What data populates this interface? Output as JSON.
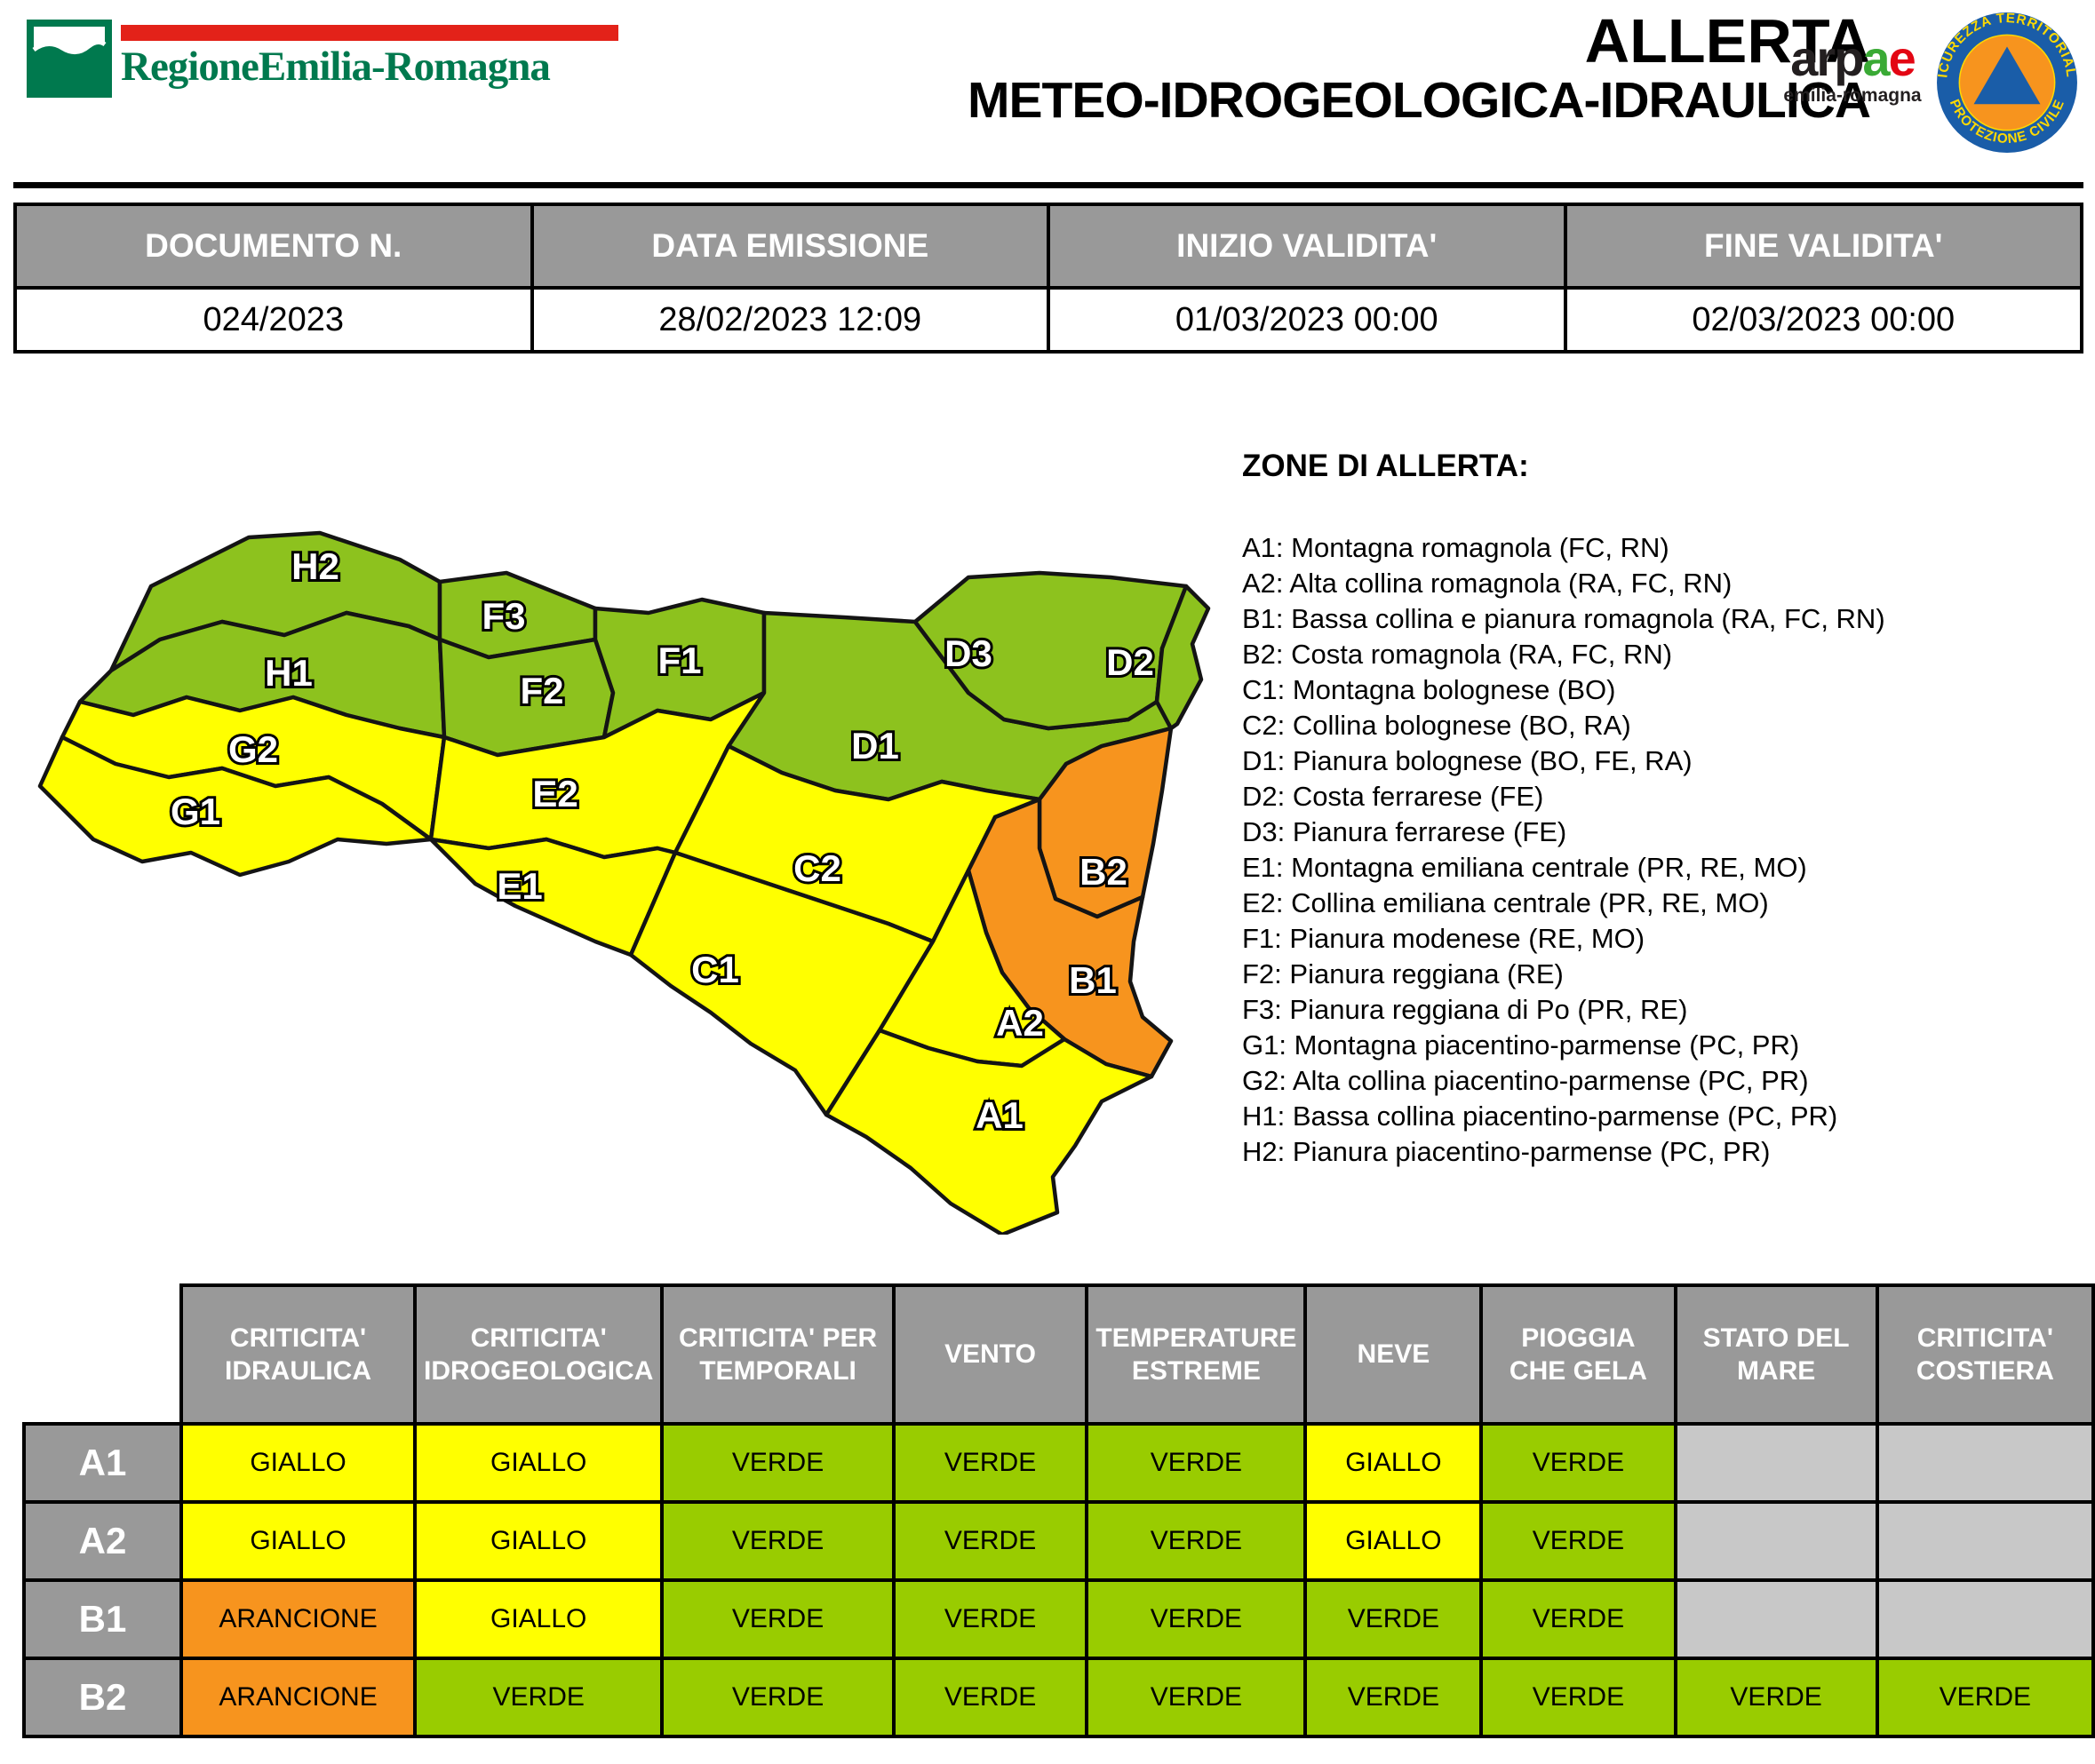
{
  "header": {
    "region_name": "RegioneEmilia-Romagna",
    "title_line1": "ALLERTA",
    "title_line2": "METEO-IDROGEOLOGICA-IDRAULICA",
    "arpae": {
      "wordmark_black": "arp",
      "wordmark_green": "a",
      "wordmark_red": "e",
      "subtitle": "emilia-romagna"
    },
    "badge": {
      "top_text": "SICUREZZA TERRITORIALE",
      "bottom_text": "PROTEZIONE CIVILE"
    },
    "brand_colors": {
      "rer_green": "#00794E",
      "rer_red": "#E32219",
      "arpae_green": "#3AAA35",
      "arpae_red": "#E30613",
      "badge_blue": "#1A5DA8",
      "badge_orange": "#F7941E",
      "badge_yellow": "#FFD900"
    }
  },
  "document_table": {
    "columns": [
      {
        "label": "DOCUMENTO N.",
        "value": "024/2023"
      },
      {
        "label": "DATA EMISSIONE",
        "value": "28/02/2023 12:09"
      },
      {
        "label": "INIZIO VALIDITA'",
        "value": "01/03/2023 00:00"
      },
      {
        "label": "FINE VALIDITA'",
        "value": "02/03/2023 00:00"
      }
    ]
  },
  "zones_legend": {
    "title": "ZONE DI ALLERTA:",
    "items": [
      "A1: Montagna romagnola (FC, RN)",
      "A2: Alta collina romagnola (RA, FC, RN)",
      "B1: Bassa collina e pianura romagnola (RA, FC, RN)",
      "B2: Costa romagnola (RA, FC, RN)",
      "C1: Montagna bolognese (BO)",
      "C2: Collina bolognese (BO, RA)",
      "D1: Pianura bolognese (BO, FE, RA)",
      "D2: Costa ferrarese (FE)",
      "D3: Pianura ferrarese (FE)",
      "E1: Montagna emiliana centrale (PR, RE, MO)",
      "E2: Collina emiliana centrale (PR, RE, MO)",
      "F1: Pianura modenese (RE, MO)",
      "F2: Pianura reggiana (RE)",
      "F3: Pianura reggiana di Po (PR, RE)",
      "G1: Montagna piacentino-parmense (PC, PR)",
      "G2: Alta collina piacentino-parmense (PC, PR)",
      "H1: Bassa collina piacentino-parmense (PC, PR)",
      "H2: Pianura piacentino-parmense (PC, PR)"
    ]
  },
  "map": {
    "colors": {
      "verde": "#99CC00",
      "map_verde": "#8DC21E",
      "giallo": "#FFFF00",
      "arancione": "#F7941E",
      "none": "#C8C8C8"
    },
    "zones": [
      {
        "id": "H2",
        "level": "verde"
      },
      {
        "id": "H1",
        "level": "verde"
      },
      {
        "id": "G2",
        "level": "giallo"
      },
      {
        "id": "G1",
        "level": "giallo"
      },
      {
        "id": "F3",
        "level": "verde"
      },
      {
        "id": "F2",
        "level": "verde"
      },
      {
        "id": "F1",
        "level": "verde"
      },
      {
        "id": "E2",
        "level": "giallo"
      },
      {
        "id": "E1",
        "level": "giallo"
      },
      {
        "id": "D3",
        "level": "verde"
      },
      {
        "id": "D2",
        "level": "verde"
      },
      {
        "id": "D1",
        "level": "verde"
      },
      {
        "id": "C2",
        "level": "giallo"
      },
      {
        "id": "C1",
        "level": "giallo"
      },
      {
        "id": "B2",
        "level": "arancione"
      },
      {
        "id": "B1",
        "level": "arancione"
      },
      {
        "id": "A2",
        "level": "giallo"
      },
      {
        "id": "A1",
        "level": "giallo"
      }
    ]
  },
  "alert_table": {
    "columns": [
      "CRITICITA' IDRAULICA",
      "CRITICITA' IDROGEOLOGICA",
      "CRITICITA' PER TEMPORALI",
      "VENTO",
      "TEMPERATURE ESTREME",
      "NEVE",
      "PIOGGIA CHE GELA",
      "STATO DEL MARE",
      "CRITICITA' COSTIERA"
    ],
    "rows": [
      {
        "zone": "A1",
        "cells": [
          {
            "text": "GIALLO",
            "level": "giallo"
          },
          {
            "text": "GIALLO",
            "level": "giallo"
          },
          {
            "text": "VERDE",
            "level": "verde"
          },
          {
            "text": "VERDE",
            "level": "verde"
          },
          {
            "text": "VERDE",
            "level": "verde"
          },
          {
            "text": "GIALLO",
            "level": "giallo"
          },
          {
            "text": "VERDE",
            "level": "verde"
          },
          {
            "text": "",
            "level": "none"
          },
          {
            "text": "",
            "level": "none"
          }
        ]
      },
      {
        "zone": "A2",
        "cells": [
          {
            "text": "GIALLO",
            "level": "giallo"
          },
          {
            "text": "GIALLO",
            "level": "giallo"
          },
          {
            "text": "VERDE",
            "level": "verde"
          },
          {
            "text": "VERDE",
            "level": "verde"
          },
          {
            "text": "VERDE",
            "level": "verde"
          },
          {
            "text": "GIALLO",
            "level": "giallo"
          },
          {
            "text": "VERDE",
            "level": "verde"
          },
          {
            "text": "",
            "level": "none"
          },
          {
            "text": "",
            "level": "none"
          }
        ]
      },
      {
        "zone": "B1",
        "cells": [
          {
            "text": "ARANCIONE",
            "level": "arancione"
          },
          {
            "text": "GIALLO",
            "level": "giallo"
          },
          {
            "text": "VERDE",
            "level": "verde"
          },
          {
            "text": "VERDE",
            "level": "verde"
          },
          {
            "text": "VERDE",
            "level": "verde"
          },
          {
            "text": "VERDE",
            "level": "verde"
          },
          {
            "text": "VERDE",
            "level": "verde"
          },
          {
            "text": "",
            "level": "none"
          },
          {
            "text": "",
            "level": "none"
          }
        ]
      },
      {
        "zone": "B2",
        "cells": [
          {
            "text": "ARANCIONE",
            "level": "arancione"
          },
          {
            "text": "VERDE",
            "level": "verde"
          },
          {
            "text": "VERDE",
            "level": "verde"
          },
          {
            "text": "VERDE",
            "level": "verde"
          },
          {
            "text": "VERDE",
            "level": "verde"
          },
          {
            "text": "VERDE",
            "level": "verde"
          },
          {
            "text": "VERDE",
            "level": "verde"
          },
          {
            "text": "VERDE",
            "level": "verde"
          },
          {
            "text": "VERDE",
            "level": "verde"
          }
        ]
      }
    ]
  }
}
